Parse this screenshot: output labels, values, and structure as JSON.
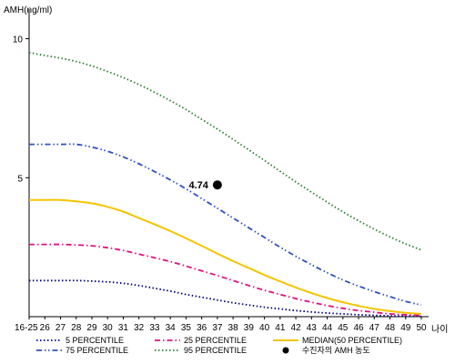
{
  "chart_data": {
    "type": "line",
    "title": "",
    "ylabel": "AMH(ng/ml)",
    "xlabel": "나이",
    "ylim": [
      0,
      11
    ],
    "yticks": [
      5,
      10
    ],
    "y_tick_labels": [
      "5",
      "10"
    ],
    "categories": [
      "16-25",
      "26",
      "27",
      "28",
      "29",
      "30",
      "31",
      "32",
      "33",
      "34",
      "35",
      "36",
      "37",
      "38",
      "39",
      "40",
      "41",
      "42",
      "43",
      "44",
      "45",
      "46",
      "47",
      "48",
      "49",
      "50"
    ],
    "grid": false,
    "legend_position": "bottom",
    "series": [
      {
        "name": "5 PERCENTILE",
        "color": "#000080",
        "dash": "dotted",
        "values": [
          1.3,
          1.3,
          1.3,
          1.3,
          1.28,
          1.25,
          1.2,
          1.12,
          1.02,
          0.92,
          0.8,
          0.7,
          0.6,
          0.5,
          0.42,
          0.34,
          0.28,
          0.22,
          0.17,
          0.13,
          0.1,
          0.07,
          0.05,
          0.03,
          0.02,
          0.01
        ]
      },
      {
        "name": "25 PERCENTILE",
        "color": "#e0107f",
        "dash": "dashdot",
        "values": [
          2.6,
          2.6,
          2.6,
          2.58,
          2.55,
          2.48,
          2.38,
          2.25,
          2.12,
          1.98,
          1.82,
          1.65,
          1.48,
          1.3,
          1.12,
          0.95,
          0.8,
          0.65,
          0.52,
          0.4,
          0.3,
          0.22,
          0.16,
          0.1,
          0.07,
          0.05
        ]
      },
      {
        "name": "MEDIAN(50 PERCENTILE)",
        "color": "#f5c400",
        "dash": "solid",
        "values": [
          4.2,
          4.2,
          4.2,
          4.15,
          4.08,
          3.95,
          3.78,
          3.55,
          3.32,
          3.08,
          2.82,
          2.55,
          2.27,
          2.0,
          1.75,
          1.5,
          1.27,
          1.05,
          0.85,
          0.67,
          0.52,
          0.39,
          0.28,
          0.2,
          0.14,
          0.1
        ]
      },
      {
        "name": "75 PERCENTILE",
        "color": "#3050c0",
        "dash": "dashdotdot",
        "values": [
          6.2,
          6.2,
          6.2,
          6.2,
          6.1,
          5.95,
          5.75,
          5.5,
          5.22,
          4.92,
          4.6,
          4.25,
          3.9,
          3.55,
          3.2,
          2.85,
          2.5,
          2.17,
          1.87,
          1.58,
          1.32,
          1.1,
          0.9,
          0.72,
          0.55,
          0.42
        ]
      },
      {
        "name": "95 PERCENTILE",
        "color": "#2e7d32",
        "dash": "dotted",
        "values": [
          9.5,
          9.4,
          9.3,
          9.18,
          9.02,
          8.82,
          8.6,
          8.35,
          8.07,
          7.77,
          7.45,
          7.1,
          6.75,
          6.38,
          6.0,
          5.62,
          5.23,
          4.85,
          4.48,
          4.12,
          3.77,
          3.45,
          3.15,
          2.87,
          2.62,
          2.4
        ]
      }
    ],
    "points": [
      {
        "name": "수진자의 AMH 농도",
        "x": "37",
        "y": 4.74,
        "label": "4.74",
        "color": "#000000"
      }
    ]
  }
}
